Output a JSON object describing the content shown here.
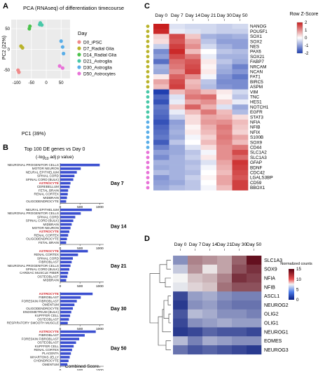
{
  "panels": {
    "a": "A",
    "b": "B",
    "c": "C",
    "d": "D"
  },
  "colors": {
    "iPSC": "#f08a8a",
    "radial": "#b9b32a",
    "radial14": "#4cc24c",
    "astroglia21": "#48c8a8",
    "astroglia30": "#5aaee8",
    "astrocytes": "#e872d8",
    "bar": "#3b4fd0",
    "astro_label": "#d0282e",
    "hm_low": "#1f3fb0",
    "hm_mid": "#ffffff",
    "hm_high": "#c81e1e",
    "nc_low": "#0a1d80",
    "nc_mid": "#f4f4f4",
    "nc_high": "#5a0010"
  },
  "chart_data": [
    {
      "type": "scatter",
      "title": "PCA (RNAseq) of  differentiation timecourse",
      "xlabel": "PC1 (39%)",
      "ylabel": "PC2 (22%)",
      "xticks": [
        -100,
        -50,
        0,
        50
      ],
      "yticks": [
        -50,
        0,
        50
      ],
      "xlim": [
        -118,
        80
      ],
      "ylim": [
        -70,
        72
      ],
      "grid": true,
      "legend_title": "Day",
      "legend_placement": "right",
      "series": [
        {
          "name": "D0_iPSC",
          "color_key": "iPSC",
          "points": [
            [
              -95,
              -50
            ],
            [
              -92,
              -55
            ]
          ]
        },
        {
          "name": "D7_Radial Glia",
          "color_key": "radial",
          "points": [
            [
              -85,
              8
            ],
            [
              -80,
              4
            ]
          ]
        },
        {
          "name": "D14_Radial Glia",
          "color_key": "radial14",
          "points": [
            [
              -55,
              56
            ],
            [
              -57,
              50
            ]
          ]
        },
        {
          "name": "D21_Astroglia",
          "color_key": "astroglia21",
          "points": [
            [
              -22,
              60
            ],
            [
              -20,
              64
            ],
            [
              -15,
              59
            ]
          ]
        },
        {
          "name": "D30_Astroglia",
          "color_key": "astroglia30",
          "points": [
            [
              55,
              6
            ],
            [
              50,
              20
            ],
            [
              58,
              -10
            ]
          ]
        },
        {
          "name": "D50_Astrocytes",
          "color_key": "astrocytes",
          "points": [
            [
              45,
              -40
            ],
            [
              55,
              -45
            ]
          ]
        }
      ]
    },
    {
      "type": "bar",
      "title": "Top 100 DE genes vs Day 0",
      "subtitle": "(-log",
      "subtitle_sub": "10",
      "subtitle_end": " adj p value)",
      "xlabel": "Combined Score",
      "xticks": [
        0,
        500,
        1000
      ],
      "xlim": [
        0,
        1100
      ],
      "groups": [
        {
          "label": "Day 7",
          "categories": [
            "NEURONAL PROGENITOR CELLS",
            "MOTOR NEURON",
            "NEURAL EPITHELIUM",
            "SPINAL CORD",
            "SPINAL CORD (BULK)",
            "ASTROCYTE",
            "CEREBELLUM",
            "FETAL BRAIN",
            "RENAL CORTEX",
            "MIDBRAIN",
            "OLIGODENDROCYTE"
          ],
          "values": [
            1000,
            520,
            420,
            360,
            330,
            260,
            240,
            200,
            190,
            170,
            150
          ]
        },
        {
          "label": "Day 14",
          "categories": [
            "NEURAL EPITHELIUM",
            "NEURONAL PROGENITOR CELLS",
            "SPINAL CORD",
            "SPINAL CORD (BULK)",
            "MIDBRAIN",
            "MOTOR NEURON",
            "ASTROCYTE",
            "RENAL CORTEX",
            "OLIGODENDROCYTE",
            "FETAL BRAIN"
          ],
          "values": [
            800,
            520,
            380,
            330,
            290,
            260,
            230,
            200,
            170,
            150
          ]
        },
        {
          "label": "Day 21",
          "categories": [
            "ASTROCYTE",
            "RENAL CORTEX",
            "SPINAL CORD",
            "FIBROBLAST",
            "NEURONAL PROGENITOR CELLS",
            "SPINAL CORD (BULK)",
            "CARDIAC MUSCLE FIBER",
            "OSTEOBLAST",
            "MIDBRAIN"
          ],
          "values": [
            700,
            450,
            320,
            290,
            260,
            230,
            200,
            180,
            150
          ]
        },
        {
          "label": "Day 30",
          "categories": [
            "ASTROCYTE",
            "FIBROBLAST",
            "FORESKIN FIBROBLAST",
            "OMENTUM",
            "OLIGODENDROCYTE",
            "ENDOMETRIUM (BULK)",
            "KUPFFER CELL",
            "OSTEOBLAST",
            "RESPIRATORY SMOOTH MUSCLE"
          ],
          "values": [
            820,
            520,
            420,
            360,
            320,
            280,
            250,
            220,
            190
          ]
        },
        {
          "label": "Day 50",
          "categories": [
            "ASTROCYTE",
            "FIBROBLAST",
            "FORESKIN FIBROBLAST",
            "OSTEOBLAST",
            "KUPFFER CELL",
            "RENAL CORTEX",
            "PLACENTA",
            "WHARTONS JELLY",
            "CHONDROCYTE",
            "OMENTUM"
          ],
          "values": [
            900,
            620,
            480,
            400,
            340,
            300,
            270,
            240,
            210,
            180
          ]
        }
      ]
    },
    {
      "type": "heatmap",
      "columns": [
        "Day 0",
        "Day 7",
        "Day 14",
        "Day 21",
        "Day 30",
        "Day 50"
      ],
      "legend_title": "Row Z-Score",
      "legend_ticks": [
        2,
        1,
        0,
        -1,
        -2
      ],
      "zlim": [
        -2,
        2
      ],
      "rows": [
        "NANOG",
        "POU5F1",
        "SOX1",
        "SOX2",
        "NES",
        "PAX6",
        "SOX21",
        "FABP7",
        "NRCAM",
        "NCAN",
        "FAT1",
        "BIRC5",
        "ASPM",
        "VIM",
        "TNC",
        "HES1",
        "NOTCH1",
        "EGFR",
        "STAT3",
        "NFIA",
        "NFIB",
        "NFIX",
        "S100B",
        "SOX9",
        "CD44",
        "SLC1A2",
        "SLC1A3",
        "GFAP",
        "BDNF",
        "CDC42",
        "LGALS3BP",
        "CD59",
        "BBOX1"
      ],
      "row_colors": [
        "radial",
        "radial",
        "radial",
        "radial",
        "radial",
        "radial",
        "radial",
        "radial",
        "radial",
        "radial",
        "radial",
        "radial",
        "radial",
        "astroglia21",
        "astroglia21",
        "astroglia21",
        "astroglia21",
        "astroglia21",
        "astroglia21",
        "astroglia30",
        "astroglia30",
        "astroglia30",
        "astroglia30",
        "astroglia30",
        "astroglia30",
        "astrocytes",
        "astrocytes",
        "astrocytes",
        "astrocytes",
        "astrocytes",
        "astrocytes",
        "astrocytes",
        "astrocytes"
      ],
      "values": [
        [
          2.0,
          -0.3,
          -0.4,
          -0.4,
          -0.5,
          -0.4
        ],
        [
          1.9,
          -0.2,
          -0.3,
          -0.4,
          -0.5,
          -0.5
        ],
        [
          0.4,
          1.6,
          0.5,
          -0.8,
          -0.9,
          -0.8
        ],
        [
          0.3,
          1.5,
          0.8,
          -0.6,
          -1.0,
          -1.0
        ],
        [
          -0.5,
          1.7,
          1.0,
          -0.4,
          -0.8,
          -1.0
        ],
        [
          -1.2,
          1.9,
          0.6,
          0.0,
          -0.6,
          -0.7
        ],
        [
          -1.0,
          1.6,
          1.2,
          -0.2,
          -0.8,
          -0.8
        ],
        [
          -1.5,
          1.3,
          1.5,
          0.2,
          -0.6,
          -0.9
        ],
        [
          -0.8,
          1.2,
          1.6,
          0.1,
          -0.8,
          -1.3
        ],
        [
          -0.9,
          1.0,
          1.7,
          0.2,
          -0.9,
          -1.1
        ],
        [
          0.2,
          1.4,
          1.0,
          -0.1,
          -1.1,
          -1.4
        ],
        [
          0.8,
          1.6,
          0.6,
          -0.6,
          -1.2,
          -1.2
        ],
        [
          0.6,
          1.7,
          0.7,
          -0.7,
          -1.1,
          -1.2
        ],
        [
          -2.0,
          0.6,
          1.0,
          0.6,
          0.2,
          -0.4
        ],
        [
          -1.6,
          -0.3,
          1.2,
          1.3,
          0.1,
          -0.6
        ],
        [
          -1.8,
          -0.2,
          0.8,
          1.0,
          0.4,
          -0.2
        ],
        [
          -1.4,
          0.5,
          1.4,
          0.7,
          -0.3,
          -0.9
        ],
        [
          -1.5,
          -0.2,
          0.6,
          1.2,
          0.6,
          -0.7
        ],
        [
          -1.6,
          -0.5,
          0.3,
          0.8,
          0.7,
          0.3
        ],
        [
          -1.8,
          -1.0,
          0.3,
          0.9,
          1.0,
          0.6
        ],
        [
          -1.6,
          -0.9,
          0.1,
          0.7,
          1.2,
          0.5
        ],
        [
          -1.5,
          -0.8,
          0.2,
          0.6,
          1.1,
          0.4
        ],
        [
          -1.4,
          -0.9,
          -0.1,
          0.4,
          1.2,
          0.8
        ],
        [
          -1.7,
          -0.6,
          0.0,
          0.6,
          1.1,
          0.6
        ],
        [
          -1.3,
          -0.9,
          -0.3,
          0.3,
          1.0,
          1.2
        ],
        [
          -1.0,
          -0.9,
          -0.6,
          -0.1,
          1.0,
          1.6
        ],
        [
          -1.2,
          -0.8,
          -0.5,
          0.2,
          1.0,
          1.3
        ],
        [
          -0.8,
          -0.8,
          -0.7,
          -0.3,
          0.8,
          1.8
        ],
        [
          -0.9,
          -0.8,
          -0.6,
          -0.1,
          0.7,
          1.7
        ],
        [
          -0.7,
          -0.8,
          -0.7,
          0.0,
          0.6,
          1.6
        ],
        [
          -1.1,
          -0.8,
          -0.5,
          0.1,
          0.8,
          1.5
        ],
        [
          -1.0,
          -0.9,
          -0.6,
          0.0,
          0.8,
          1.7
        ],
        [
          -0.9,
          -0.7,
          -0.6,
          -0.1,
          0.6,
          1.7
        ]
      ]
    },
    {
      "type": "heatmap",
      "columns": [
        "Day 0",
        "Day 7",
        "Day 14",
        "Day 21",
        "Day 30",
        "Day 50"
      ],
      "legend_title": "Normalized counts",
      "legend_ticks": [
        15,
        10,
        5,
        0
      ],
      "zlim": [
        0,
        15
      ],
      "rows": [
        "SLC1A3",
        "SOX9",
        "NFIA",
        "NFIB",
        "ASCL1",
        "NEUROG2",
        "OLIG2",
        "OLIG1",
        "NEUROG1",
        "EOMES",
        "NEUROG3"
      ],
      "values": [
        [
          4.0,
          11.0,
          10.5,
          10.0,
          12.0,
          14.5
        ],
        [
          6.0,
          10.5,
          8.0,
          10.0,
          12.5,
          13.5
        ],
        [
          7.5,
          9.0,
          9.5,
          11.0,
          13.5,
          13.0
        ],
        [
          7.0,
          8.5,
          9.0,
          11.5,
          12.5,
          12.5
        ],
        [
          1.5,
          4.5,
          5.0,
          4.0,
          3.5,
          3.5
        ],
        [
          1.0,
          4.0,
          4.5,
          3.5,
          3.0,
          3.0
        ],
        [
          2.0,
          5.5,
          5.0,
          4.0,
          4.0,
          3.5
        ],
        [
          1.5,
          4.0,
          4.5,
          5.0,
          4.5,
          4.5
        ],
        [
          1.0,
          1.5,
          2.5,
          2.0,
          2.0,
          1.5
        ],
        [
          5.5,
          3.5,
          5.0,
          4.5,
          4.0,
          4.0
        ],
        [
          3.0,
          2.0,
          2.5,
          2.0,
          1.5,
          1.0
        ]
      ]
    }
  ]
}
